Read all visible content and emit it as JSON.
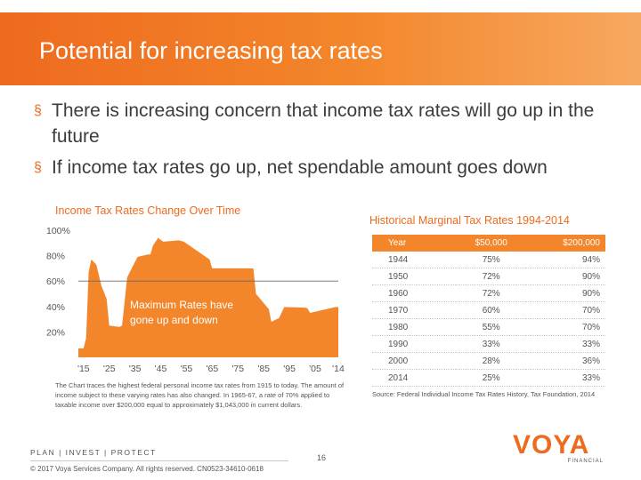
{
  "slide": {
    "title": "Potential for increasing tax rates",
    "bullets": [
      "There is increasing concern that income tax rates will go up in the future",
      "If income tax rates go up, net spendable amount goes down"
    ],
    "bullet_icon": "square-bullet-icon",
    "accent_color": "#ee6a1e"
  },
  "chart_data": {
    "type": "area",
    "title": "Income Tax Rates Change Over Time",
    "xlabel": "",
    "ylabel": "",
    "x_ticks": [
      "'15",
      "'25",
      "'35",
      "'45",
      "'55",
      "'65",
      "'75",
      "'85",
      "'95",
      "'05",
      "'14"
    ],
    "y_ticks": [
      "100%",
      "80%",
      "60%",
      "40%",
      "20%"
    ],
    "xlim": [
      1913,
      2014
    ],
    "ylim": [
      0,
      100
    ],
    "grid": false,
    "annotation": "Maximum Rates have gone up and down",
    "note": "The Chart traces the highest federal personal income tax rates from 1915 to today. The amount of income subject to these varying rates has also changed. In 1965-67, a rate of 70% applied to taxable income over $200,000 equal to approximately $1,043,000 in current dollars.",
    "fill_color": "#f3862b",
    "reference_line_y": 60,
    "series": [
      {
        "x": [
          1913,
          1915,
          1916,
          1917,
          1918,
          1920,
          1922,
          1924,
          1925,
          1929,
          1930,
          1932,
          1936,
          1940,
          1941,
          1942,
          1944,
          1946,
          1952,
          1954,
          1964,
          1965,
          1981,
          1982,
          1987,
          1988,
          1991,
          1993,
          2001,
          2002,
          2003,
          2013,
          2014
        ],
        "y": [
          7,
          7,
          15,
          67,
          77,
          73,
          56,
          46,
          25,
          24,
          25,
          63,
          79,
          81,
          81,
          88,
          94,
          91,
          92,
          91,
          77,
          70,
          70,
          50,
          38,
          28,
          31,
          39.6,
          39.1,
          38.6,
          35,
          39.6,
          39.6
        ]
      }
    ]
  },
  "table": {
    "title": "Historical Marginal Tax Rates 1994-2014",
    "columns": [
      "Year",
      "$50,000",
      "$200,000"
    ],
    "rows": [
      [
        "1944",
        "75%",
        "94%"
      ],
      [
        "1950",
        "72%",
        "90%"
      ],
      [
        "1960",
        "72%",
        "90%"
      ],
      [
        "1970",
        "60%",
        "70%"
      ],
      [
        "1980",
        "55%",
        "70%"
      ],
      [
        "1990",
        "33%",
        "33%"
      ],
      [
        "2000",
        "28%",
        "36%"
      ],
      [
        "2014",
        "25%",
        "33%"
      ]
    ],
    "source": "Source: Federal Individual Income Tax Rates History, Tax Foundation, 2014"
  },
  "footer": {
    "tagline": "PLAN  |  INVEST  |  PROTECT",
    "copyright": "© 2017 Voya Services Company. All rights reserved. CN0523-34610-0618",
    "page_number": "16",
    "logo_text": "VOYA",
    "logo_subtext": "FINANCIAL"
  }
}
